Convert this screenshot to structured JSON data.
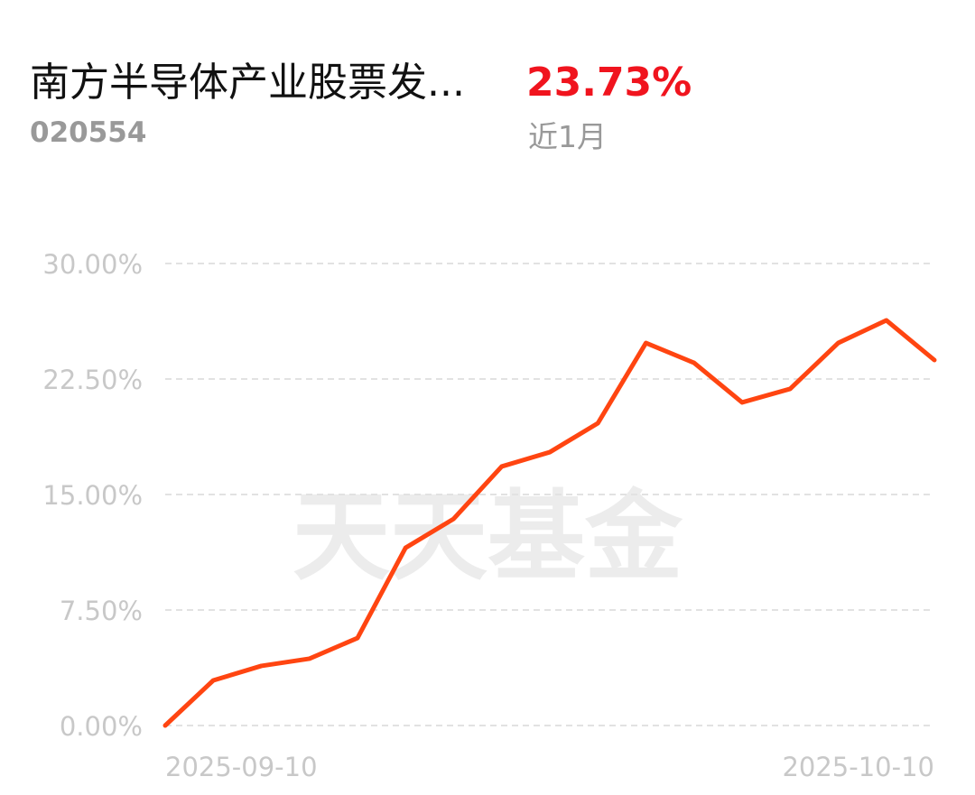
{
  "chart_data": {
    "type": "line",
    "title": "南方半导体产业股票发...",
    "subtitle": "020554",
    "return_label": "23.73%",
    "period": "近1月",
    "watermark": "天天基金",
    "categories": [
      "2025-09-10",
      null,
      null,
      null,
      null,
      null,
      null,
      null,
      null,
      null,
      null,
      null,
      null,
      null,
      null,
      null,
      "2025-10-10"
    ],
    "series": [
      {
        "name": null,
        "color": "#ff4511",
        "values": [
          0,
          2.93,
          3.87,
          4.34,
          5.68,
          11.54,
          13.42,
          16.82,
          17.75,
          19.63,
          24.84,
          23.55,
          20.98,
          21.86,
          24.84,
          26.31,
          23.73
        ]
      }
    ],
    "ylim": [
      0,
      30
    ],
    "yticks": [
      {
        "value": 0,
        "label": "0.00%"
      },
      {
        "value": 7.5,
        "label": "7.50%"
      },
      {
        "value": 15,
        "label": "15.00%"
      },
      {
        "value": 22.5,
        "label": "22.50%"
      },
      {
        "value": 30,
        "label": "30.00%"
      }
    ],
    "grid": true
  }
}
